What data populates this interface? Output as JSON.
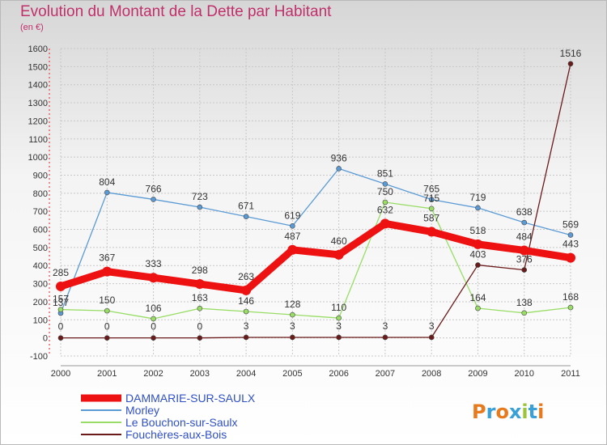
{
  "title": "Evolution du Montant de la Dette par Habitant",
  "subtitle": "(en €)",
  "logo": "Proxiti",
  "chart_data": {
    "type": "line",
    "x": [
      "2000",
      "2001",
      "2002",
      "2003",
      "2004",
      "2005",
      "2006",
      "2007",
      "2008",
      "2009",
      "2010",
      "2011"
    ],
    "ylim": [
      -100,
      1600
    ],
    "yticks": [
      -100,
      0,
      100,
      200,
      300,
      400,
      500,
      600,
      700,
      800,
      900,
      1000,
      1100,
      1200,
      1300,
      1400,
      1500,
      1600
    ],
    "grid": true,
    "legend_position": "bottom-left",
    "series": [
      {
        "name": "DAMMARIE-SUR-SAULX",
        "color": "#ee1111",
        "values": [
          285,
          367,
          333,
          298,
          263,
          487,
          460,
          632,
          587,
          518,
          484,
          443
        ]
      },
      {
        "name": "Morley",
        "color": "#5b9bd5",
        "values": [
          137,
          804,
          766,
          723,
          671,
          619,
          936,
          851,
          765,
          719,
          638,
          569
        ]
      },
      {
        "name": "Le Bouchon-sur-Saulx",
        "color": "#99dd66",
        "values": [
          157,
          150,
          106,
          163,
          146,
          128,
          110,
          750,
          715,
          164,
          138,
          168
        ]
      },
      {
        "name": "Fouchères-aux-Bois",
        "color": "#6b1a1a",
        "values": [
          0,
          0,
          0,
          0,
          3,
          3,
          3,
          3,
          3,
          403,
          376,
          1516
        ]
      }
    ]
  }
}
